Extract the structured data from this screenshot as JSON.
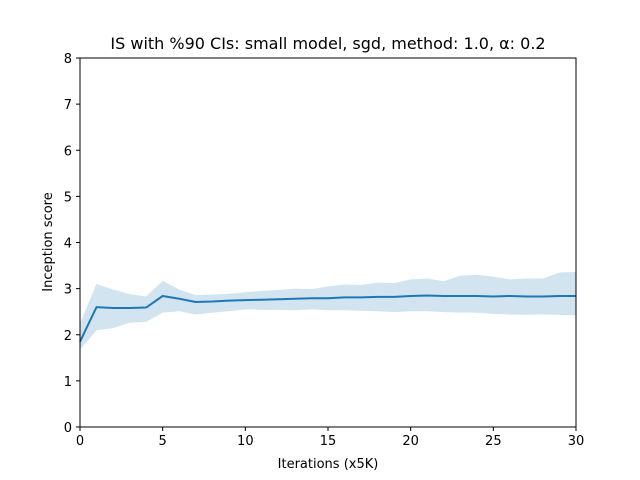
{
  "chart_data": {
    "type": "line",
    "title": "IS with %90 CIs: small model, sgd, method: 1.0, α: 0.2",
    "xlabel": "Iterations (x5K)",
    "ylabel": "Inception score",
    "xlim": [
      0,
      30
    ],
    "ylim": [
      0,
      8
    ],
    "x_ticks": [
      0,
      5,
      10,
      15,
      20,
      25,
      30
    ],
    "y_ticks": [
      0,
      1,
      2,
      3,
      4,
      5,
      6,
      7,
      8
    ],
    "grid": false,
    "legend": "none",
    "series": [
      {
        "color": "#1f77b4",
        "ci_color": "#1f77b4",
        "x": [
          0,
          1,
          2,
          3,
          4,
          5,
          6,
          7,
          8,
          9,
          10,
          11,
          12,
          13,
          14,
          15,
          16,
          17,
          18,
          19,
          20,
          21,
          22,
          23,
          24,
          25,
          26,
          27,
          28,
          29,
          30
        ],
        "y": [
          1.85,
          2.6,
          2.58,
          2.58,
          2.59,
          2.84,
          2.78,
          2.71,
          2.72,
          2.74,
          2.75,
          2.76,
          2.77,
          2.78,
          2.79,
          2.79,
          2.81,
          2.81,
          2.82,
          2.82,
          2.84,
          2.85,
          2.84,
          2.84,
          2.84,
          2.83,
          2.84,
          2.83,
          2.83,
          2.84,
          2.84
        ],
        "ci_lower": [
          1.68,
          2.1,
          2.14,
          2.26,
          2.28,
          2.48,
          2.51,
          2.44,
          2.48,
          2.51,
          2.55,
          2.54,
          2.54,
          2.53,
          2.55,
          2.53,
          2.53,
          2.52,
          2.51,
          2.49,
          2.51,
          2.51,
          2.49,
          2.48,
          2.48,
          2.45,
          2.44,
          2.43,
          2.44,
          2.43,
          2.42
        ],
        "ci_upper": [
          2.25,
          3.1,
          2.98,
          2.88,
          2.83,
          3.17,
          2.98,
          2.86,
          2.87,
          2.89,
          2.92,
          2.95,
          2.97,
          3.0,
          2.99,
          3.05,
          3.09,
          3.08,
          3.13,
          3.12,
          3.2,
          3.22,
          3.16,
          3.28,
          3.3,
          3.26,
          3.2,
          3.22,
          3.22,
          3.35,
          3.36
        ]
      }
    ]
  }
}
